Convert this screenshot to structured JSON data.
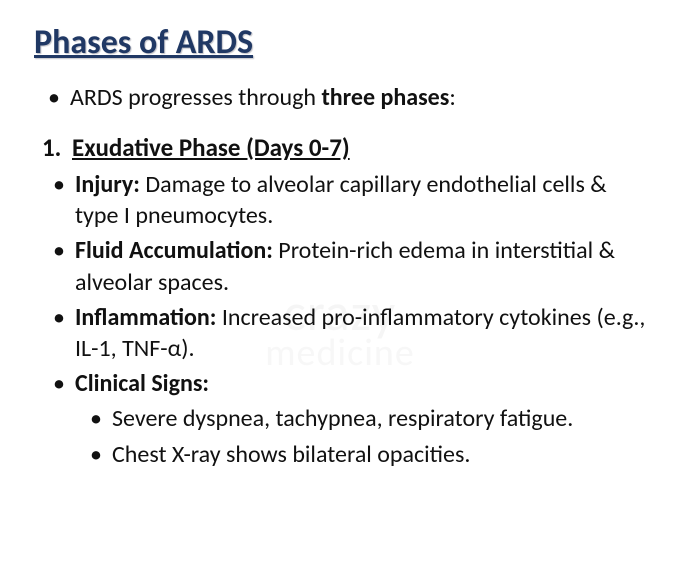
{
  "title": "Phases of ARDS",
  "intro_prefix": "ARDS progresses through ",
  "intro_bold": "three phases",
  "intro_suffix": ":",
  "phase": {
    "number": "1.",
    "heading": "Exudative Phase (Days 0-7)"
  },
  "bullets": [
    {
      "label": "Injury:",
      "text": " Damage to alveolar capillary endothelial cells & type I pneumocytes."
    },
    {
      "label": "Fluid Accumulation:",
      "text": " Protein-rich edema in interstitial & alveolar spaces."
    },
    {
      "label": "Inflammation:",
      "text": " Increased pro-inflammatory cytokines (e.g., IL-1, TNF-α)."
    },
    {
      "label": "Clinical Signs:",
      "text": ""
    }
  ],
  "sub_bullets": [
    "Severe dyspnea, tachypnea, respiratory fatigue.",
    "Chest X-ray shows bilateral opacities."
  ],
  "watermark1": "crazy",
  "watermark2": "medicine",
  "colors": {
    "title_color": "#203864",
    "text_color": "#111111",
    "background": "#ffffff"
  },
  "typography": {
    "title_fontsize": 34,
    "body_fontsize": 24,
    "heading_fontsize": 25,
    "font_family": "Calibri"
  }
}
